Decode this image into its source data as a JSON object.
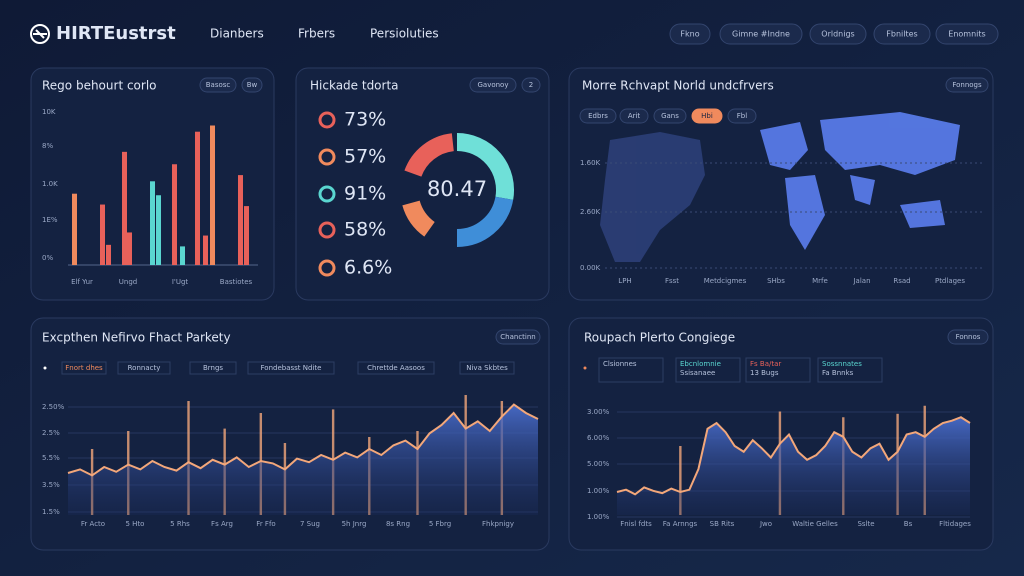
{
  "header": {
    "logo": "HIRTEustrst",
    "nav": [
      "Dianbers",
      "Frbers",
      "Persioluties"
    ],
    "buttons": [
      "Fkno",
      "Gimne #Indne",
      "Orldnigs",
      "Fbniltes",
      "Enomnits"
    ]
  },
  "panel_bars": {
    "title": "Rego behourt corlo",
    "buttons": [
      "Basosc",
      "Bw"
    ],
    "y_labels": [
      "10K",
      "8%",
      "1.0K",
      "1E%",
      "0%"
    ],
    "x_labels": [
      "Elf Yur",
      "Ungd",
      "I'Ugt",
      "Bastiotes"
    ],
    "values": [
      46,
      39,
      13,
      73,
      21,
      54,
      45,
      65,
      12,
      86,
      19,
      90,
      58,
      38
    ],
    "colors": [
      "#f08a5d",
      "#e8615a",
      "#e8615a",
      "#e8615a",
      "#e8615a",
      "#5ad6d0",
      "#5ad6d0",
      "#e8615a",
      "#5ad6d0",
      "#e8615a",
      "#e8615a",
      "#f08a5d",
      "#e8615a",
      "#e8615a"
    ]
  },
  "panel_stats": {
    "title": "Hickade tdorta",
    "buttons": [
      "Gavonoy",
      "2"
    ],
    "items": [
      "73%",
      "57%",
      "91%",
      "58%",
      "6.6%"
    ],
    "icon_colors": [
      "#e8615a",
      "#f08a5d",
      "#5ad6d0",
      "#e8615a",
      "#f08a5d"
    ],
    "gauge_label": "80.47"
  },
  "panel_map": {
    "title": "Morre Rchvapt Norld undcfrvers",
    "button": "Fonnogs",
    "tabs": [
      "Edbrs",
      "Arit",
      "Gans",
      "Hbi",
      "Fbl"
    ],
    "active_tab": 3,
    "y_labels": [
      "1.60K",
      "2.60K",
      "0.00K"
    ],
    "x_labels": [
      "LPH",
      "Fsst",
      "Metdcigmes",
      "SHbs",
      "Mrfe",
      "Jalan",
      "Rsad",
      "Ptdlages"
    ]
  },
  "panel_trend": {
    "title": "Excpthen Nefirvo Fhact Parkety",
    "button": "Chanctinn",
    "legend": [
      "Fnort dhes",
      "Ronnacty",
      "Brngs",
      "Fondebasst Ndite",
      "Chrettde Aasoos",
      "Niva Skbtes"
    ],
    "y_labels": [
      "2.50%",
      "2.5%",
      "5.5%",
      "3.5%",
      "1.5%"
    ],
    "x_labels": [
      "Fr Acto",
      "5 Hto",
      "5 Rhs",
      "Fs Arg",
      "Fr Ffo",
      "7 Sug",
      "5h Jnrg",
      "8s Rng",
      "5 Fbrg",
      "Fhkpnigy"
    ],
    "line": [
      35,
      38,
      33,
      40,
      36,
      42,
      38,
      45,
      40,
      37,
      44,
      39,
      46,
      42,
      48,
      40,
      45,
      43,
      38,
      47,
      44,
      50,
      46,
      52,
      48,
      55,
      50,
      58,
      62,
      55,
      68,
      75,
      85,
      72,
      78,
      70,
      82,
      92,
      85,
      80
    ],
    "spikes": [
      null,
      null,
      55,
      null,
      null,
      70,
      null,
      null,
      null,
      null,
      95,
      null,
      null,
      72,
      null,
      null,
      85,
      null,
      60,
      null,
      null,
      null,
      88,
      null,
      null,
      65,
      null,
      null,
      null,
      70,
      null,
      null,
      null,
      100,
      null,
      null,
      95,
      null,
      null,
      null
    ]
  },
  "panel_range": {
    "title": "Roupach Plerto Congiege",
    "button": "Fonnos",
    "legend": [
      [
        "Clsionnes"
      ],
      [
        "Ebcnlomnie",
        "Ssisanaee"
      ],
      [
        "Fs Ba/tar",
        "13 Bugs"
      ],
      [
        "Sossnnates",
        "Fa Bnnks"
      ]
    ],
    "y_labels": [
      "3.00%",
      "6.00%",
      "5.00%",
      "1.00%",
      "1.00%"
    ],
    "x_labels": [
      "Fnisl fdts",
      "Fa Arnngs",
      "SB Rits",
      "Jwo",
      "Waltie Gelles",
      "Sslte",
      "Bs",
      "Fltidages"
    ],
    "line": [
      20,
      22,
      18,
      24,
      21,
      19,
      23,
      20,
      22,
      40,
      75,
      80,
      72,
      60,
      55,
      65,
      58,
      50,
      62,
      70,
      55,
      48,
      52,
      60,
      72,
      68,
      55,
      50,
      58,
      62,
      48,
      55,
      70,
      72,
      68,
      75,
      80,
      82,
      85,
      80
    ],
    "spikes": [
      null,
      null,
      null,
      null,
      null,
      null,
      null,
      60,
      null,
      null,
      null,
      null,
      null,
      null,
      null,
      null,
      null,
      null,
      90,
      null,
      null,
      null,
      null,
      null,
      null,
      85,
      null,
      null,
      null,
      null,
      null,
      88,
      null,
      null,
      95,
      null,
      null,
      null,
      null,
      null
    ]
  }
}
